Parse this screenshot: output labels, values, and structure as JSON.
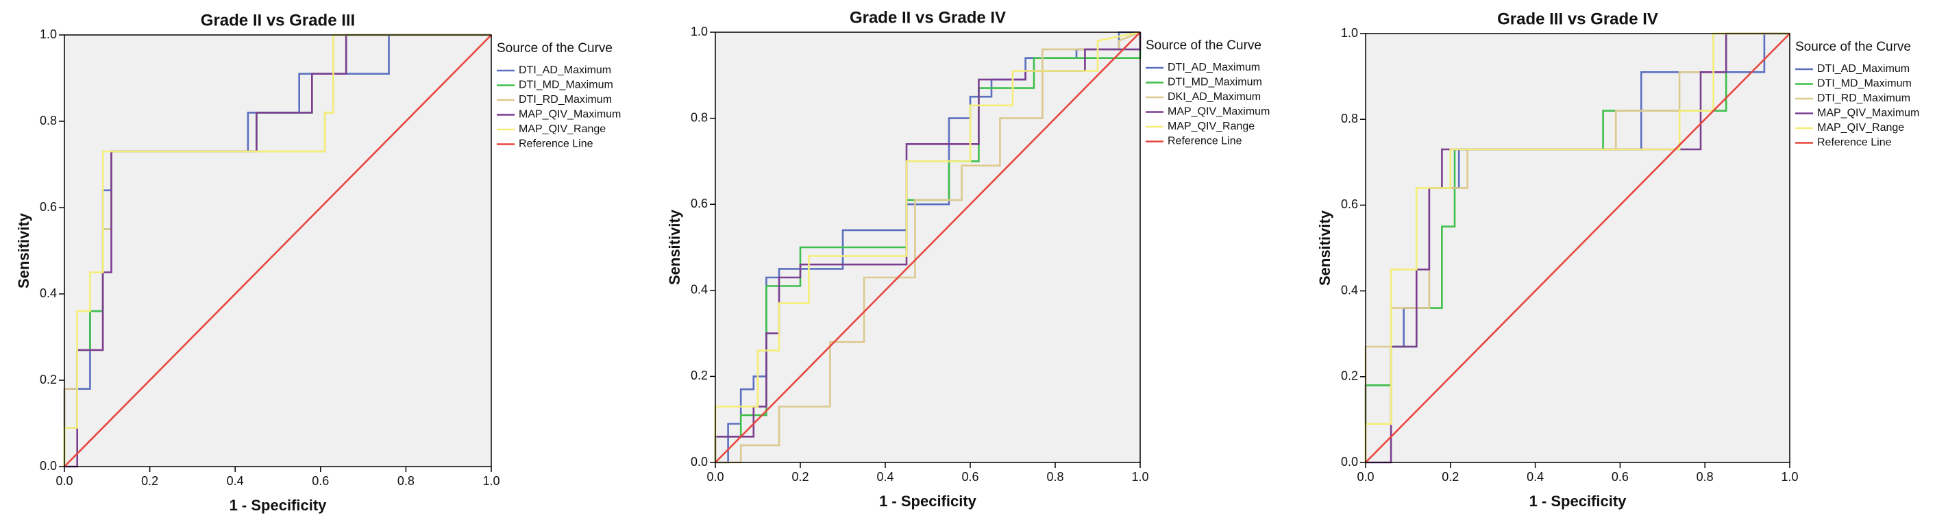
{
  "chart_data": [
    {
      "type": "line",
      "title": "Grade II vs Grade III",
      "xlabel": "1 - Specificity",
      "ylabel": "Sensitivity",
      "legend_title": "Source of the Curve",
      "xlim": [
        0,
        1
      ],
      "ylim": [
        0,
        1
      ],
      "xticks": [
        {
          "value": 0,
          "label": "0.0"
        },
        0.2,
        0.4,
        0.6,
        0.8,
        {
          "value": 1,
          "label": "1.0"
        }
      ],
      "yticks": [
        {
          "value": 0,
          "label": "0.0"
        },
        0.2,
        0.4,
        0.6,
        0.8,
        {
          "value": 1,
          "label": "1.0"
        }
      ],
      "series": [
        {
          "name": "DTI_AD_Maximum",
          "color": "#5b6fc0",
          "x": [
            0,
            0,
            0.06,
            0.06,
            0.09,
            0.09,
            0.11,
            0.11,
            0.43,
            0.43,
            0.55,
            0.55,
            0.76,
            0.76,
            1
          ],
          "y": [
            0,
            0.18,
            0.18,
            0.36,
            0.36,
            0.64,
            0.64,
            0.73,
            0.73,
            0.82,
            0.82,
            0.91,
            0.91,
            1,
            1
          ]
        },
        {
          "name": "DTI_MD_Maximum",
          "color": "#3fbf4c",
          "x": [
            0,
            0,
            0.03,
            0.03,
            0.06,
            0.06,
            0.09,
            0.09,
            0.11,
            0.11,
            0.45,
            0.45,
            0.58,
            0.58,
            0.66,
            0.66,
            1
          ],
          "y": [
            0,
            0.09,
            0.09,
            0.27,
            0.27,
            0.36,
            0.36,
            0.55,
            0.55,
            0.73,
            0.73,
            0.82,
            0.82,
            0.91,
            0.91,
            1,
            1
          ]
        },
        {
          "name": "DTI_RD_Maximum",
          "color": "#dcc98e",
          "x": [
            0,
            0,
            0.03,
            0.03,
            0.09,
            0.09,
            0.11,
            0.11,
            0.61,
            0.61,
            0.63,
            0.63,
            1
          ],
          "y": [
            0,
            0.18,
            0.18,
            0.27,
            0.27,
            0.55,
            0.55,
            0.73,
            0.73,
            0.82,
            0.82,
            1,
            1
          ]
        },
        {
          "name": "MAP_QIV_Maximum",
          "color": "#7b3d90",
          "x": [
            0,
            0.03,
            0.03,
            0.09,
            0.09,
            0.11,
            0.11,
            0.45,
            0.45,
            0.58,
            0.58,
            0.66,
            0.66,
            1
          ],
          "y": [
            0,
            0,
            0.27,
            0.27,
            0.45,
            0.45,
            0.73,
            0.73,
            0.82,
            0.82,
            0.91,
            0.91,
            1,
            1
          ]
        },
        {
          "name": "MAP_QIV_Range",
          "color": "#f4ee78",
          "x": [
            0,
            0,
            0.03,
            0.03,
            0.06,
            0.06,
            0.09,
            0.09,
            0.61,
            0.61,
            0.63,
            0.63,
            1
          ],
          "y": [
            0,
            0.09,
            0.09,
            0.36,
            0.36,
            0.45,
            0.45,
            0.73,
            0.73,
            0.82,
            0.82,
            1,
            1
          ]
        },
        {
          "name": "Reference Line",
          "color": "#e8453e",
          "x": [
            0,
            1
          ],
          "y": [
            0,
            1
          ]
        }
      ]
    },
    {
      "type": "line",
      "title": "Grade II vs Grade IV",
      "xlabel": "1 - Specificity",
      "ylabel": "Sensitivity",
      "legend_title": "Source of the Curve",
      "xlim": [
        0,
        1
      ],
      "ylim": [
        0,
        1
      ],
      "xticks": [
        {
          "value": 0,
          "label": "0.0"
        },
        0.2,
        0.4,
        0.6,
        0.8,
        {
          "value": 1,
          "label": "1.0"
        }
      ],
      "yticks": [
        {
          "value": 0,
          "label": "0.0"
        },
        0.2,
        0.4,
        0.6,
        0.8,
        {
          "value": 1,
          "label": "1.0"
        }
      ],
      "series": [
        {
          "name": "DTI_AD_Maximum",
          "color": "#5b6fc0",
          "x": [
            0,
            0.03,
            0.03,
            0.06,
            0.06,
            0.09,
            0.09,
            0.12,
            0.12,
            0.15,
            0.15,
            0.3,
            0.3,
            0.45,
            0.45,
            0.55,
            0.55,
            0.6,
            0.6,
            0.65,
            0.65,
            0.73,
            0.73,
            0.85,
            0.85,
            0.95,
            0.95,
            1
          ],
          "y": [
            0,
            0,
            0.09,
            0.09,
            0.17,
            0.17,
            0.2,
            0.2,
            0.43,
            0.43,
            0.45,
            0.45,
            0.54,
            0.54,
            0.6,
            0.6,
            0.8,
            0.8,
            0.85,
            0.85,
            0.89,
            0.89,
            0.94,
            0.94,
            0.96,
            0.96,
            1,
            1
          ]
        },
        {
          "name": "DTI_MD_Maximum",
          "color": "#3fbf4c",
          "x": [
            0,
            0,
            0.06,
            0.06,
            0.12,
            0.12,
            0.2,
            0.2,
            0.45,
            0.45,
            0.55,
            0.55,
            0.62,
            0.62,
            0.75,
            0.75,
            1,
            1
          ],
          "y": [
            0,
            0.06,
            0.06,
            0.11,
            0.11,
            0.41,
            0.41,
            0.5,
            0.5,
            0.61,
            0.61,
            0.7,
            0.7,
            0.87,
            0.87,
            0.94,
            0.94,
            1
          ]
        },
        {
          "name": "DKI_AD_Maximum",
          "color": "#dcc98e",
          "x": [
            0,
            0.06,
            0.06,
            0.15,
            0.15,
            0.27,
            0.27,
            0.35,
            0.35,
            0.47,
            0.47,
            0.58,
            0.58,
            0.67,
            0.67,
            0.77,
            0.77,
            0.95,
            0.95,
            1
          ],
          "y": [
            0,
            0,
            0.04,
            0.04,
            0.13,
            0.13,
            0.28,
            0.28,
            0.43,
            0.43,
            0.61,
            0.61,
            0.69,
            0.69,
            0.8,
            0.8,
            0.96,
            0.96,
            0.98,
            1
          ]
        },
        {
          "name": "MAP_QIV_Maximum",
          "color": "#7b3d90",
          "x": [
            0,
            0,
            0.09,
            0.09,
            0.12,
            0.12,
            0.15,
            0.15,
            0.2,
            0.2,
            0.45,
            0.45,
            0.62,
            0.62,
            0.73,
            0.73,
            0.87,
            0.87,
            1,
            1
          ],
          "y": [
            0,
            0.06,
            0.06,
            0.13,
            0.13,
            0.3,
            0.3,
            0.43,
            0.43,
            0.46,
            0.46,
            0.74,
            0.74,
            0.89,
            0.89,
            0.91,
            0.91,
            0.96,
            0.96,
            1
          ]
        },
        {
          "name": "MAP_QIV_Range",
          "color": "#f4ee78",
          "x": [
            0,
            0,
            0.1,
            0.1,
            0.15,
            0.15,
            0.22,
            0.22,
            0.45,
            0.45,
            0.6,
            0.6,
            0.7,
            0.7,
            0.9,
            0.9,
            1
          ],
          "y": [
            0,
            0.13,
            0.13,
            0.26,
            0.26,
            0.37,
            0.37,
            0.48,
            0.48,
            0.7,
            0.7,
            0.83,
            0.83,
            0.91,
            0.91,
            0.98,
            1
          ]
        },
        {
          "name": "Reference Line",
          "color": "#e8453e",
          "x": [
            0,
            1
          ],
          "y": [
            0,
            1
          ]
        }
      ]
    },
    {
      "type": "line",
      "title": "Grade III vs Grade IV",
      "xlabel": "1 - Specificity",
      "ylabel": "Sensitivity",
      "legend_title": "Source of the Curve",
      "xlim": [
        0,
        1
      ],
      "ylim": [
        0,
        1
      ],
      "xticks": [
        {
          "value": 0,
          "label": "0.0"
        },
        0.2,
        0.4,
        0.6,
        0.8,
        {
          "value": 1,
          "label": "1.0"
        }
      ],
      "yticks": [
        {
          "value": 0,
          "label": "0.0"
        },
        0.2,
        0.4,
        0.6,
        0.8,
        {
          "value": 1,
          "label": "1.0"
        }
      ],
      "series": [
        {
          "name": "DTI_AD_Maximum",
          "color": "#5b6fc0",
          "x": [
            0,
            0,
            0.06,
            0.06,
            0.09,
            0.09,
            0.15,
            0.15,
            0.22,
            0.22,
            0.65,
            0.65,
            0.94,
            0.94,
            1
          ],
          "y": [
            0,
            0.18,
            0.18,
            0.27,
            0.27,
            0.36,
            0.36,
            0.64,
            0.64,
            0.73,
            0.73,
            0.91,
            0.91,
            1,
            1
          ]
        },
        {
          "name": "DTI_MD_Maximum",
          "color": "#3fbf4c",
          "x": [
            0,
            0,
            0.06,
            0.06,
            0.12,
            0.12,
            0.18,
            0.18,
            0.21,
            0.21,
            0.56,
            0.56,
            0.85,
            0.85,
            1
          ],
          "y": [
            0,
            0.18,
            0.18,
            0.27,
            0.27,
            0.36,
            0.36,
            0.55,
            0.55,
            0.73,
            0.73,
            0.82,
            0.82,
            1,
            1
          ]
        },
        {
          "name": "DTI_RD_Maximum",
          "color": "#dcc98e",
          "x": [
            0,
            0,
            0.06,
            0.06,
            0.15,
            0.15,
            0.24,
            0.24,
            0.59,
            0.59,
            0.74,
            0.74,
            0.82,
            0.82,
            1
          ],
          "y": [
            0,
            0.27,
            0.27,
            0.36,
            0.36,
            0.64,
            0.64,
            0.73,
            0.73,
            0.82,
            0.82,
            0.91,
            0.91,
            1,
            1
          ]
        },
        {
          "name": "MAP_QIV_Maximum",
          "color": "#7b3d90",
          "x": [
            0,
            0.06,
            0.06,
            0.12,
            0.12,
            0.15,
            0.15,
            0.18,
            0.18,
            0.79,
            0.79,
            0.85,
            0.85,
            1
          ],
          "y": [
            0,
            0,
            0.27,
            0.27,
            0.45,
            0.45,
            0.64,
            0.64,
            0.73,
            0.73,
            0.91,
            0.91,
            1,
            1
          ]
        },
        {
          "name": "MAP_QIV_Range",
          "color": "#f4ee78",
          "x": [
            0,
            0,
            0.06,
            0.06,
            0.12,
            0.12,
            0.2,
            0.2,
            0.74,
            0.74,
            0.82,
            0.82,
            1
          ],
          "y": [
            0,
            0.09,
            0.09,
            0.45,
            0.45,
            0.64,
            0.64,
            0.73,
            0.73,
            0.82,
            0.82,
            1,
            1
          ]
        },
        {
          "name": "Reference Line",
          "color": "#e8453e",
          "x": [
            0,
            1
          ],
          "y": [
            0,
            1
          ]
        }
      ]
    }
  ]
}
